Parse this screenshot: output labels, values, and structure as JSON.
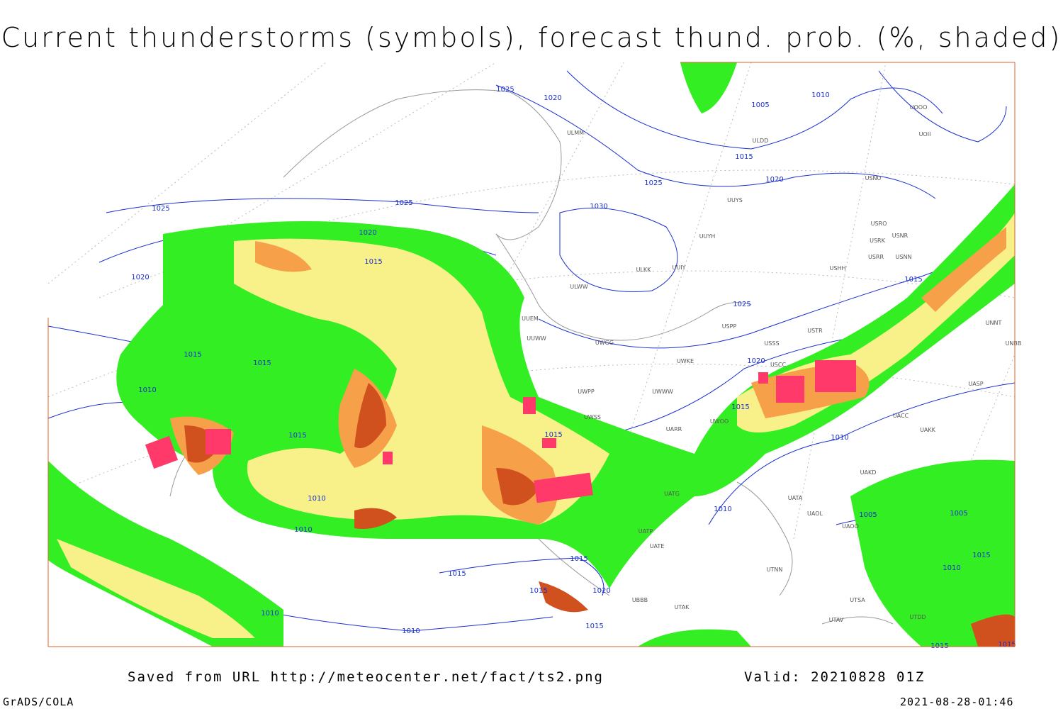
{
  "header": {
    "title": "Current thunderstorms (symbols), forecast thund. prob. (%, shaded)"
  },
  "isobar_labels": [
    "1025",
    "1020",
    "1005",
    "1010",
    "1015",
    "1020",
    "1025",
    "1025",
    "1025",
    "1030",
    "1020",
    "1015",
    "1020",
    "1025",
    "1015",
    "1015",
    "1015",
    "1010",
    "1015",
    "1015",
    "1020",
    "1015",
    "1010",
    "1010",
    "1010",
    "1010",
    "1005",
    "1005",
    "1015",
    "1010",
    "1015",
    "1015",
    "1020",
    "1015",
    "1015",
    "1010",
    "1010",
    "1015",
    "1015"
  ],
  "stations": [
    "ULMM",
    "ULDD",
    "UUYS",
    "UUYH",
    "ULKK",
    "UUIY",
    "ULWW",
    "UUEM",
    "UUWW",
    "UWGG",
    "UWKE",
    "UWPP",
    "UWWW",
    "UWSS",
    "UARR",
    "UWOO",
    "USSS",
    "USTR",
    "USPP",
    "USCC",
    "USHH",
    "USRR",
    "USNN",
    "USRK",
    "USNR",
    "USRO",
    "USNU",
    "UOOO",
    "UOII",
    "UNNT",
    "UNBB",
    "UASP",
    "UACC",
    "UAKK",
    "UAKD",
    "UATA",
    "UAOL",
    "UAOO",
    "UTNN",
    "UTAK",
    "UBBB",
    "UATG",
    "UATP",
    "UATE",
    "UTSA",
    "UTAV",
    "UTDD"
  ],
  "footer": {
    "saved": "Saved from URL http://meteocenter.net/fact/ts2.png",
    "valid": "Valid: 20210828 01Z",
    "credit": "GrADS/COLA",
    "timestamp": "2021-08-28-01:46"
  }
}
